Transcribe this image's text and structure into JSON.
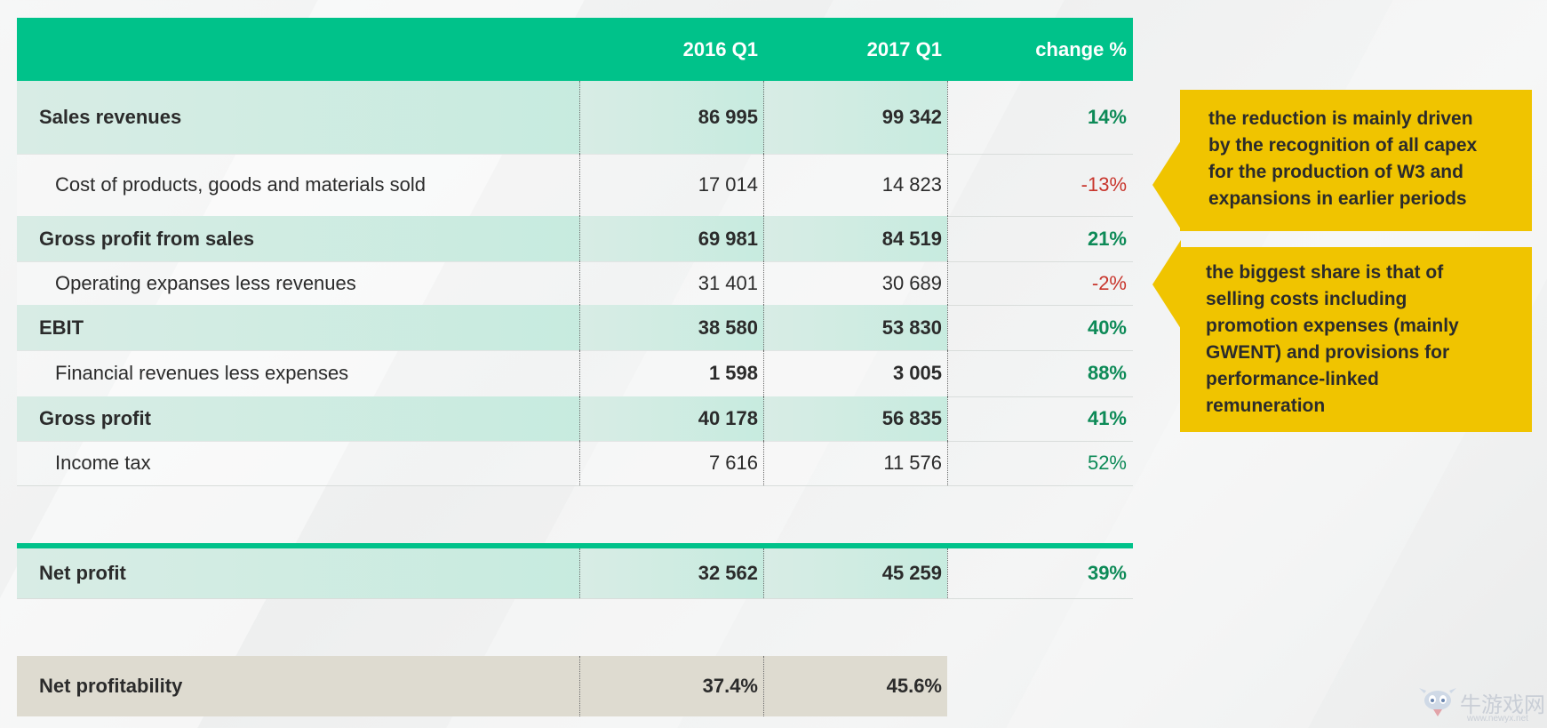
{
  "chart_data": {
    "type": "table",
    "columns": [
      "",
      "2016 Q1",
      "2017 Q1",
      "change %"
    ],
    "rows": [
      {
        "label": "Sales revenues",
        "v2016": "86 995",
        "v2017": "99 342",
        "change": "14%"
      },
      {
        "label": "Cost of products, goods and materials sold",
        "v2016": "17 014",
        "v2017": "14 823",
        "change": "-13%"
      },
      {
        "label": "Gross profit from sales",
        "v2016": "69 981",
        "v2017": "84 519",
        "change": "21%"
      },
      {
        "label": "Operating expanses less revenues",
        "v2016": "31 401",
        "v2017": "30 689",
        "change": "-2%"
      },
      {
        "label": "EBIT",
        "v2016": "38 580",
        "v2017": "53 830",
        "change": "40%"
      },
      {
        "label": "Financial revenues less expenses",
        "v2016": "1 598",
        "v2017": "3 005",
        "change": "88%"
      },
      {
        "label": "Gross profit",
        "v2016": "40 178",
        "v2017": "56 835",
        "change": "41%"
      },
      {
        "label": "Income tax",
        "v2016": "7 616",
        "v2017": "11 576",
        "change": "52%"
      }
    ],
    "net_profit": {
      "label": "Net profit",
      "v2016": "32 562",
      "v2017": "45 259",
      "change": "39%"
    },
    "net_profitability": {
      "label": "Net profitability",
      "v2016": "37.4%",
      "v2017": "45.6%"
    }
  },
  "callouts": [
    {
      "lines": [
        "the reduction is mainly driven",
        "by the recognition of all capex",
        "for the production of W3 and",
        "expansions in earlier periods"
      ]
    },
    {
      "lines": [
        "the biggest share is that of",
        "selling costs including",
        "promotion expenses (mainly",
        "GWENT) and provisions for",
        "performance-linked",
        "remuneration"
      ]
    }
  ],
  "watermark": {
    "text": "牛游戏网",
    "url": "www.newyx.net"
  },
  "colors": {
    "header_green": "#00c28a",
    "positive": "#0d8a57",
    "negative": "#c8352c",
    "callout_yellow": "#f0c400",
    "profitability_row": "#dedbd0"
  }
}
